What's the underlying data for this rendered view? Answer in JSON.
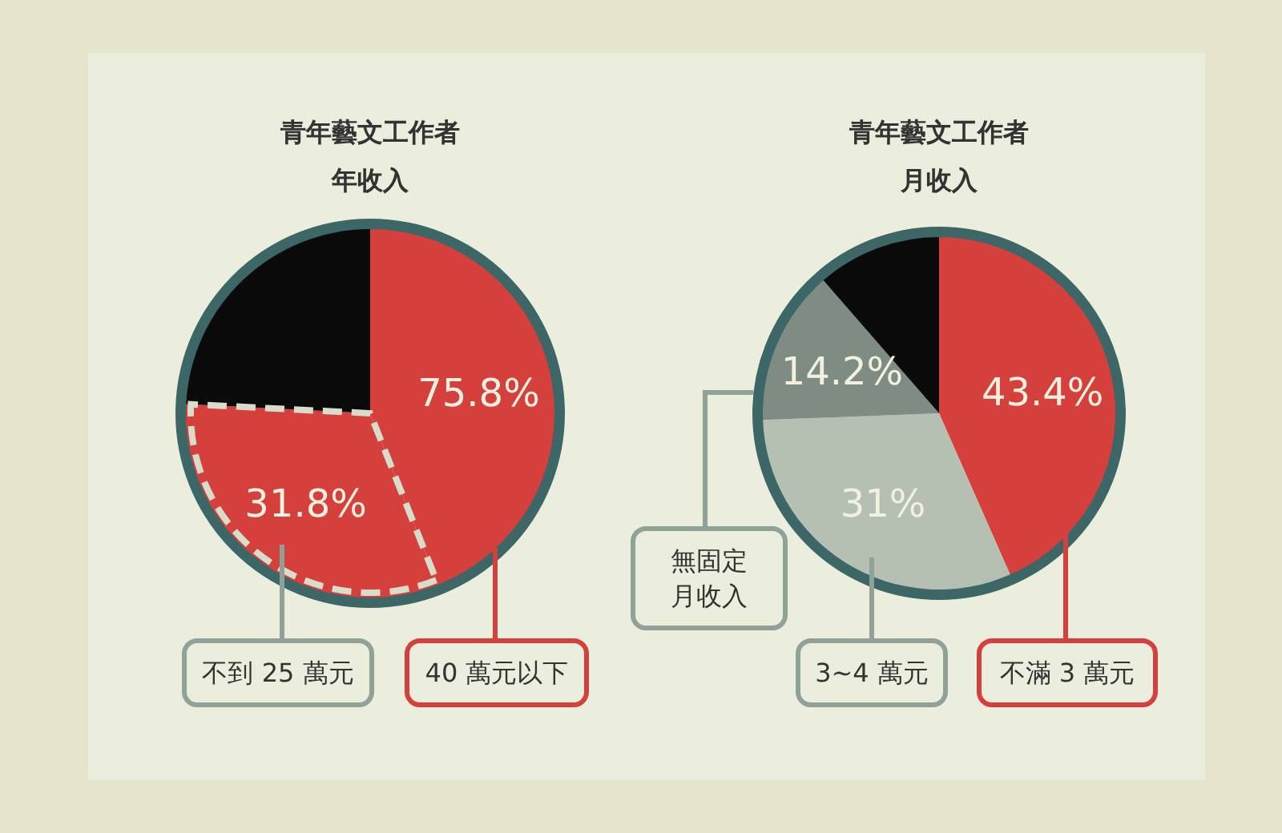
{
  "chart_data": [
    {
      "type": "pie",
      "title": "青年藝文工作者",
      "subtitle": "年收入",
      "categories": [
        "40 萬元以下",
        "不到 25 萬元",
        null
      ],
      "values": [
        44.0,
        31.8,
        24.2
      ],
      "colors": [
        "#d6403c",
        "#d6403c",
        "#0a0a0a"
      ],
      "value_labels": [
        null,
        "31.8%",
        null
      ],
      "annotations": [
        "75.8%"
      ]
    },
    {
      "type": "pie",
      "title": "青年藝文工作者",
      "subtitle": "月收入",
      "categories": [
        "不滿 3 萬元",
        "3~4 萬元",
        "無固定月收入",
        null
      ],
      "values": [
        43.4,
        31,
        14.2,
        11.4
      ],
      "colors": [
        "#d6403c",
        "#b5bfb2",
        "#7e8c83",
        "#0a0a0a"
      ],
      "value_labels": [
        "43.4%",
        "31%",
        "14.2%",
        null
      ]
    }
  ]
}
